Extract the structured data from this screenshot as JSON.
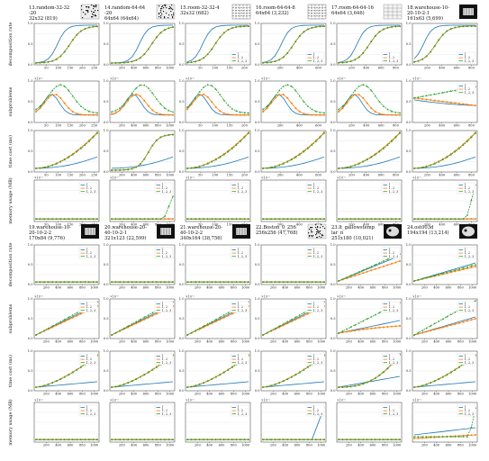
{
  "rows_labels": [
    "decomposition rate",
    "subproblems",
    "time cost (ms)",
    "memory usage (MB)"
  ],
  "legend_labels": [
    "1",
    "1, 2",
    "1, 2, 3"
  ],
  "colors": {
    "s1": "#1f77b4",
    "s2": "#ff7f0e",
    "s3": "#2ca02c"
  },
  "multiplier": "×10⁻¹",
  "maps": [
    {
      "title": [
        "13.random-32-32",
        "-20",
        "32x32 (819)"
      ],
      "thumb": "noise",
      "xticks": [
        "50",
        "100",
        "150",
        "200",
        "250"
      ]
    },
    {
      "title": [
        "14.random-64-64",
        "-20",
        "64x64 (64x64)"
      ],
      "thumb": "noise",
      "xticks": [
        "200",
        "400",
        "600",
        "800",
        "1000"
      ]
    },
    {
      "title": [
        "15.room-32-32-4",
        "32x32 (682)"
      ],
      "thumb": "rooms",
      "xticks": [
        "50",
        "100",
        "150",
        "200"
      ]
    },
    {
      "title": [
        "16.room-64-64-8",
        "64x64 (3,232)"
      ],
      "thumb": "rooms",
      "xticks": [
        "200",
        "400",
        "600"
      ]
    },
    {
      "title": [
        "17.room-64-64-16",
        "64x64 (3,646)"
      ],
      "thumb": "grid",
      "xticks": [
        "200",
        "400",
        "600",
        "800"
      ]
    },
    {
      "title": [
        "18.warehouse-10-",
        "20-10-2-1",
        "161x63 (5,699)"
      ],
      "thumb": "dark",
      "xticks": [
        "200",
        "400",
        "600",
        "800"
      ]
    },
    {
      "title": [
        "19.warehouse-10-",
        "20-10-2-2",
        "170x84 (9,776)"
      ],
      "thumb": "dark",
      "xticks": [
        "200",
        "400",
        "600",
        "800",
        "1000"
      ]
    },
    {
      "title": [
        "20.warehouse-20-",
        "40-10-2-1",
        "321x123 (22,599)"
      ],
      "thumb": "dark",
      "xticks": [
        "200",
        "400",
        "600",
        "800",
        "1000"
      ]
    },
    {
      "title": [
        "21.warehouse-20-",
        "40-10-2-2",
        "340x164 (38,756)"
      ],
      "thumb": "dark",
      "xticks": [
        "200",
        "400",
        "600",
        "800",
        "1000"
      ]
    },
    {
      "title": [
        "22.Boston_0_256",
        "256x256 (47,768)"
      ],
      "thumb": "noise",
      "xticks": [
        "200",
        "400",
        "600",
        "800",
        "1000"
      ]
    },
    {
      "title": [
        "23.lt_gallowstemp",
        "lar_n",
        "251x180 (10,021)"
      ],
      "thumb": "blob",
      "xticks": [
        "200",
        "400",
        "600",
        "800",
        "1000"
      ]
    },
    {
      "title": [
        "24.ost003d",
        "194x194 (13,214)"
      ],
      "thumb": "blob",
      "xticks": [
        "200",
        "400",
        "600",
        "800",
        "1000"
      ]
    }
  ],
  "chart_data": {
    "type": "line",
    "description_rows": [
      "decomposition rate",
      "subproblems",
      "time cost (ms)",
      "memory usage (MB)"
    ],
    "series_names": [
      "1",
      "1, 2",
      "1, 2, 3"
    ],
    "panels": [
      {
        "map": "13",
        "decomposition_rate": {
          "1": [
            0.05,
            0.2,
            0.6,
            0.95,
            1,
            1,
            1
          ],
          "1, 2": [
            0.02,
            0.05,
            0.2,
            0.55,
            0.85,
            0.97,
            1
          ],
          "1, 2, 3": [
            0.02,
            0.05,
            0.2,
            0.55,
            0.85,
            0.97,
            1
          ]
        }
      },
      {
        "map": "14",
        "decomposition_rate": {
          "1": [
            0.05,
            0.1,
            0.3,
            0.9,
            1,
            1,
            1
          ],
          "1, 2": [
            0.02,
            0.03,
            0.1,
            0.5,
            0.9,
            1,
            1
          ],
          "1, 2, 3": [
            0.02,
            0.03,
            0.1,
            0.5,
            0.9,
            1,
            1
          ]
        }
      },
      {
        "map": "15",
        "decomposition_rate": {
          "1": [
            0.1,
            0.6,
            0.95,
            1,
            1,
            1,
            1
          ],
          "1, 2": [
            0.05,
            0.2,
            0.5,
            0.8,
            0.95,
            1,
            1
          ],
          "1, 2, 3": [
            0.05,
            0.2,
            0.5,
            0.8,
            0.95,
            1,
            1
          ]
        }
      },
      {
        "map": "16",
        "decomposition_rate": {
          "1": [
            0.2,
            0.5,
            0.8,
            0.95,
            1,
            1,
            1
          ],
          "1, 2": [
            0.1,
            0.3,
            0.5,
            0.7,
            0.85,
            0.95,
            1
          ],
          "1, 2, 3": [
            0.1,
            0.3,
            0.5,
            0.7,
            0.85,
            0.95,
            1
          ]
        }
      },
      {
        "map": "17",
        "decomposition_rate": {
          "1": [
            0.2,
            0.5,
            0.8,
            0.95,
            1,
            1,
            1
          ],
          "1, 2": [
            0.1,
            0.3,
            0.5,
            0.7,
            0.85,
            0.95,
            1
          ],
          "1, 2, 3": [
            0.1,
            0.3,
            0.5,
            0.7,
            0.85,
            0.95,
            1
          ]
        }
      },
      {
        "map": "18",
        "decomposition_rate": {
          "1": [
            0.5,
            0.8,
            0.95,
            1,
            1,
            1,
            1
          ],
          "1, 2": [
            0.2,
            0.45,
            0.65,
            0.8,
            0.9,
            0.95,
            1
          ],
          "1, 2, 3": [
            0.2,
            0.45,
            0.65,
            0.8,
            0.9,
            0.95,
            1
          ]
        }
      }
    ]
  }
}
